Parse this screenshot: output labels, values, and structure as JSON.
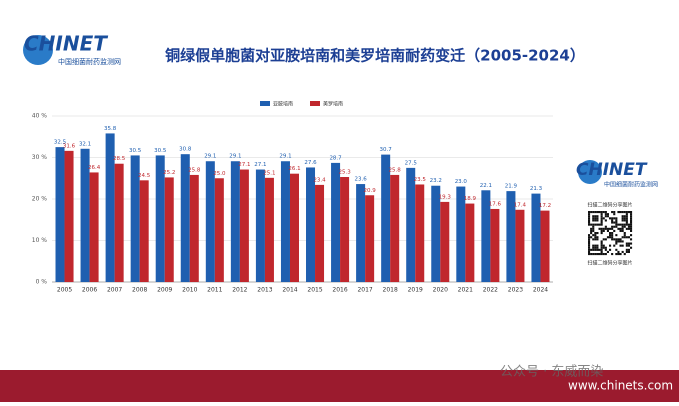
{
  "header": {
    "logo": "CHINET",
    "logo_sub": "中国细菌耐药监测网"
  },
  "side": {
    "logo": "CHINET",
    "logo_sub": "中国细菌耐药监测网",
    "qr_caption_top": "扫描二维码分享图片",
    "qr_caption_bottom": "扫描二维码分享图片"
  },
  "footer": {
    "watermark": "公众号 · 东威而染",
    "site": "www.chinets.com"
  },
  "chart_data": {
    "type": "bar",
    "title": "铜绿假单胞菌对亚胺培南和美罗培南耐药变迁（2005-2024）",
    "categories": [
      "2005",
      "2006",
      "2007",
      "2008",
      "2009",
      "2010",
      "2011",
      "2012",
      "2013",
      "2014",
      "2015",
      "2016",
      "2017",
      "2018",
      "2019",
      "2020",
      "2021",
      "2022",
      "2023",
      "2024"
    ],
    "series": [
      {
        "name": "亚胺培南",
        "color": "#1f5fb0",
        "values": [
          32.5,
          32.1,
          35.8,
          30.5,
          30.5,
          30.8,
          29.1,
          29.1,
          27.1,
          29.1,
          27.6,
          28.7,
          23.6,
          30.7,
          27.5,
          23.2,
          23.0,
          22.1,
          21.9,
          21.3
        ],
        "value_labels": [
          "32.5",
          "32.1",
          "35.8",
          "30.5",
          "30.5",
          "30.8",
          "29.1",
          "29.1",
          "27.1",
          "29.1",
          "27.6",
          "28.7",
          "23.6",
          "30.7",
          "27.5",
          "23.2",
          "23.0",
          "22.1",
          "21.9",
          "21.3"
        ]
      },
      {
        "name": "美罗培南",
        "color": "#c0272d",
        "values": [
          31.6,
          26.4,
          28.5,
          24.5,
          25.2,
          25.8,
          25.0,
          27.1,
          25.1,
          26.1,
          23.4,
          25.3,
          20.9,
          25.8,
          23.5,
          19.3,
          18.9,
          17.6,
          17.4,
          17.2
        ],
        "value_labels": [
          "31.6",
          "26.4",
          "28.5",
          "24.5",
          "25.2",
          "25.8",
          "25.0",
          "27.1",
          "25.1",
          "26.1",
          "23.4",
          "25.3",
          "20.9",
          "25.8",
          "23.5",
          "19.3",
          "18.9",
          "17.6",
          "17.4",
          "17.2"
        ]
      }
    ],
    "ylim": [
      0,
      40
    ],
    "yticks": [
      {
        "value": 0,
        "label": "0 %"
      },
      {
        "value": 10,
        "label": "10 %"
      },
      {
        "value": 20,
        "label": "20 %"
      },
      {
        "value": 30,
        "label": "30 %"
      },
      {
        "value": 40,
        "label": "40 %"
      }
    ],
    "grid": true,
    "legend": "top"
  }
}
